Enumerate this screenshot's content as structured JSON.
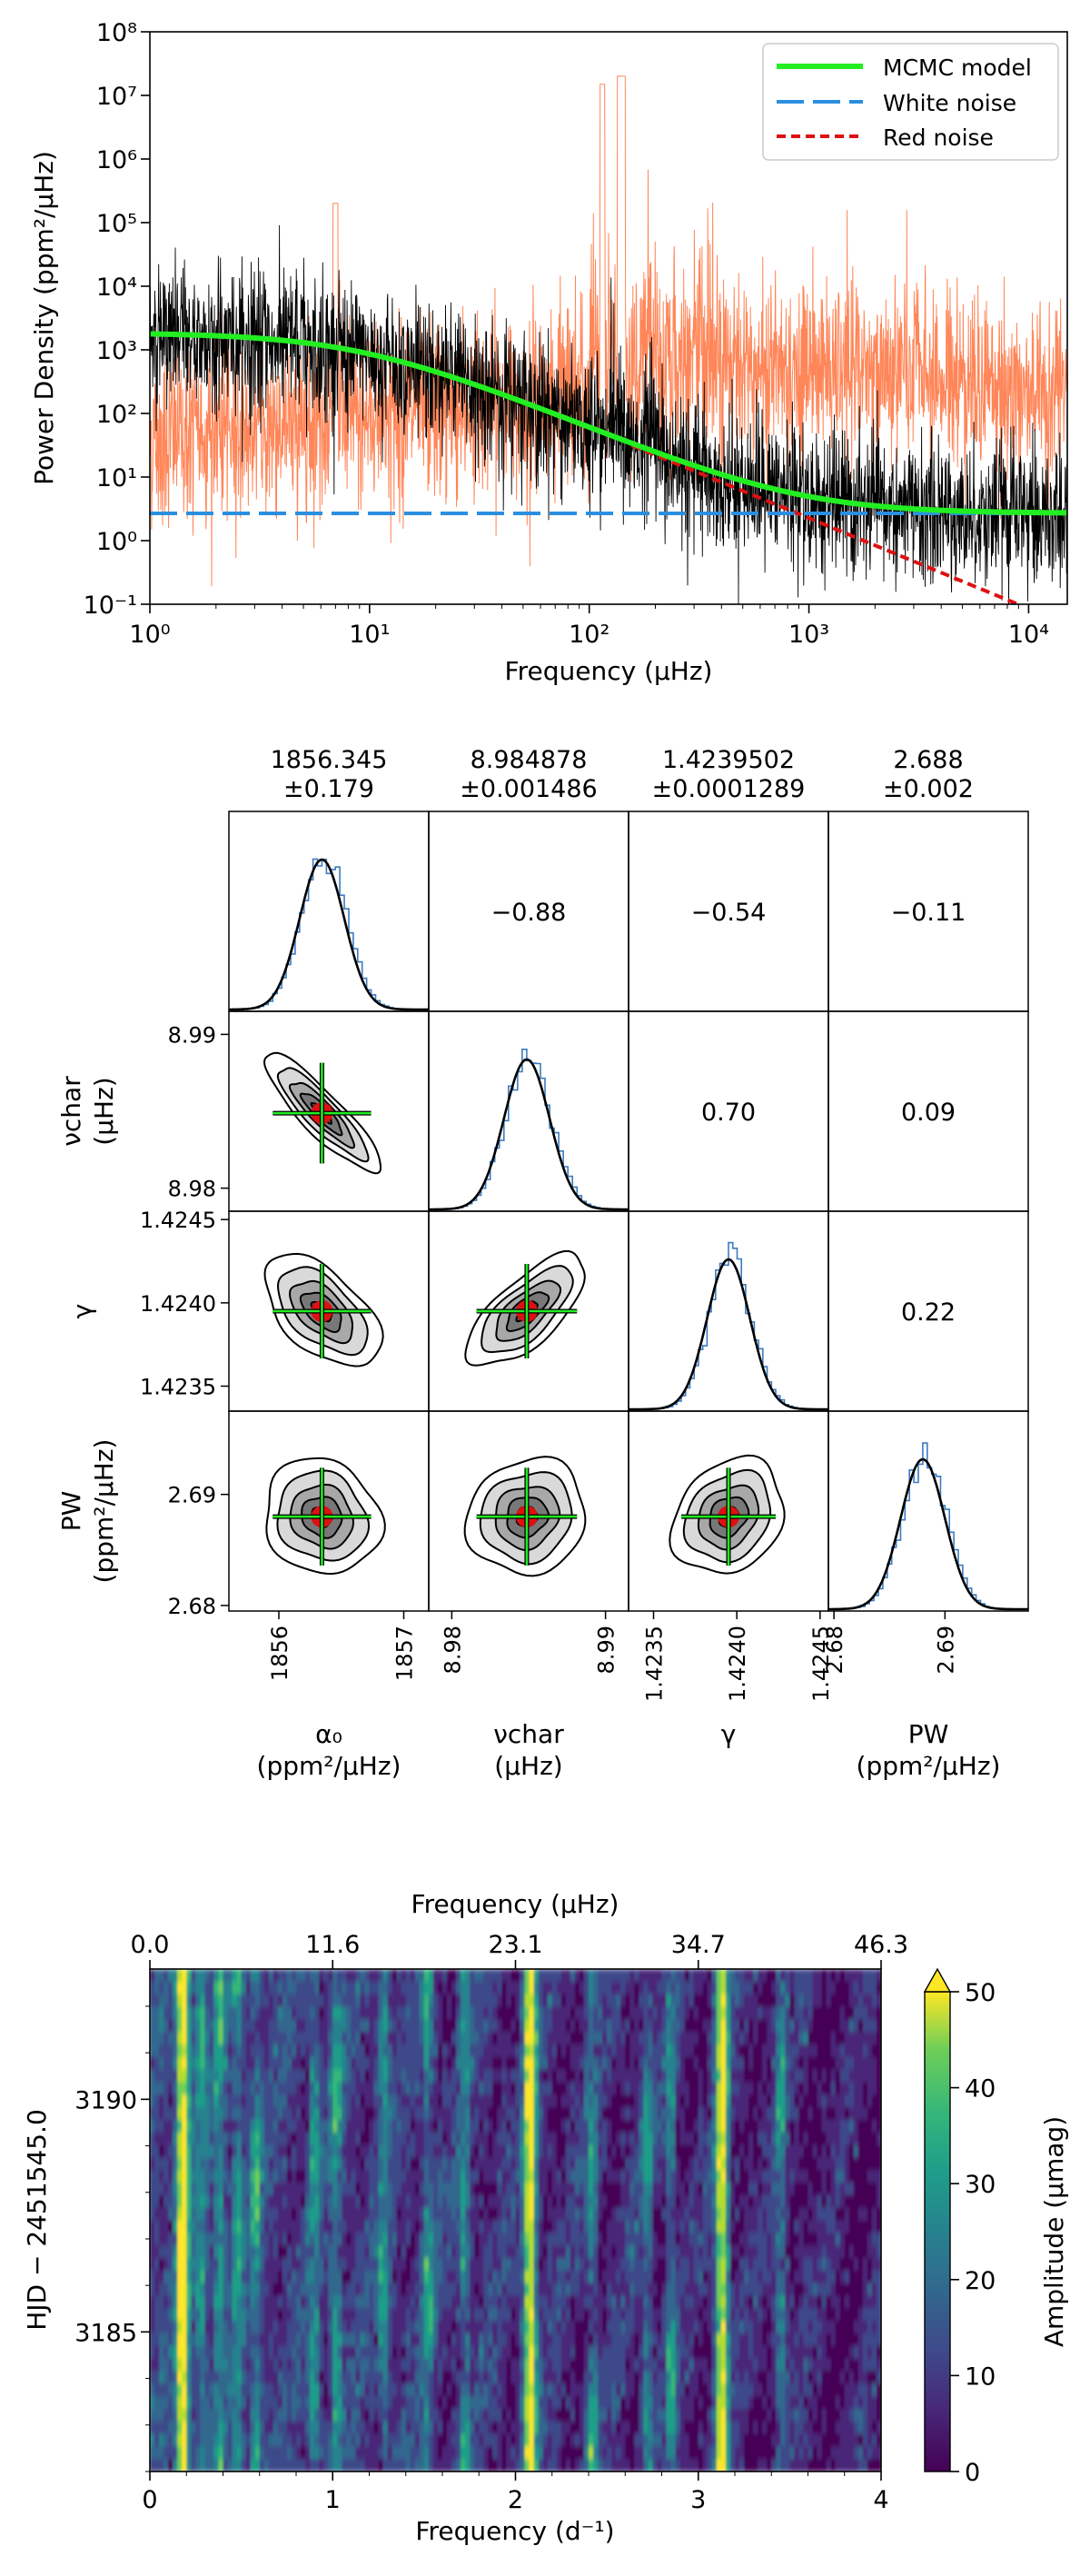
{
  "colors": {
    "mcmc": "#22ee22",
    "white_noise": "#2b8fe0",
    "red_noise": "#dd1111",
    "smoothed": "#ff7f50",
    "spectrum": "#000000"
  },
  "chart_data": [
    {
      "type": "line",
      "xlabel": "Frequency (μHz)",
      "ylabel": "Power Density (ppm²/μHz)",
      "xscale": "log",
      "yscale": "log",
      "xlim": [
        1,
        15000
      ],
      "ylim": [
        0.1,
        100000000
      ],
      "xticks": [
        {
          "value": 1,
          "label": "10⁰"
        },
        {
          "value": 10,
          "label": "10¹"
        },
        {
          "value": 100,
          "label": "10²"
        },
        {
          "value": 1000,
          "label": "10³"
        },
        {
          "value": 10000,
          "label": "10⁴"
        }
      ],
      "yticks": [
        {
          "value": 0.1,
          "label": "10⁻¹"
        },
        {
          "value": 1,
          "label": "10⁰"
        },
        {
          "value": 10,
          "label": "10¹"
        },
        {
          "value": 100,
          "label": "10²"
        },
        {
          "value": 1000,
          "label": "10³"
        },
        {
          "value": 10000,
          "label": "10⁴"
        },
        {
          "value": 100000,
          "label": "10⁵"
        },
        {
          "value": 1000000,
          "label": "10⁶"
        },
        {
          "value": 10000000,
          "label": "10⁷"
        },
        {
          "value": 100000000,
          "label": "10⁸"
        }
      ],
      "legend_position": "top-right",
      "series": [
        {
          "name": "MCMC model",
          "style": "solid",
          "model": {
            "a0": 1856.345,
            "nu_char": 8.984878,
            "gamma": 1.4239502,
            "pw": 2.688
          }
        },
        {
          "name": "White noise",
          "style": "long-dash",
          "value": 2.688
        },
        {
          "name": "Red noise",
          "style": "dashed"
        }
      ]
    },
    {
      "type": "scatter",
      "subtype": "corner",
      "parameters": [
        {
          "label": "α₀",
          "unit": "(ppm²/μHz)",
          "value": "1856.345",
          "error": "±0.179",
          "mean": 1856.345,
          "sigma": 0.179,
          "range": [
            1855.6,
            1857.2
          ],
          "ticks": [
            {
              "v": 1856,
              "l": "1856"
            },
            {
              "v": 1857,
              "l": "1857"
            }
          ]
        },
        {
          "label": "νchar",
          "unit": "(μHz)",
          "value": "8.984878",
          "error": "±0.001486",
          "mean": 8.984878,
          "sigma": 0.001486,
          "range": [
            8.9785,
            8.9915
          ],
          "ticks": [
            {
              "v": 8.98,
              "l": "8.98"
            },
            {
              "v": 8.99,
              "l": "8.99"
            }
          ]
        },
        {
          "label": "γ",
          "unit": "",
          "value": "1.4239502",
          "error": "±0.0001289",
          "mean": 1.4239502,
          "sigma": 0.0001289,
          "range": [
            1.42335,
            1.42455
          ],
          "ticks": [
            {
              "v": 1.4235,
              "l": "1.4235"
            },
            {
              "v": 1.424,
              "l": "1.4240"
            },
            {
              "v": 1.4245,
              "l": "1.4245"
            }
          ]
        },
        {
          "label": "PW",
          "unit": "(ppm²/μHz)",
          "value": "2.688",
          "error": "±0.002",
          "mean": 2.688,
          "sigma": 0.002,
          "range": [
            2.6795,
            2.6975
          ],
          "ticks": [
            {
              "v": 2.68,
              "l": "2.68"
            },
            {
              "v": 2.69,
              "l": "2.69"
            }
          ]
        }
      ],
      "correlations": [
        {
          "row": 0,
          "col": 1,
          "value": "−0.88",
          "r": -0.88
        },
        {
          "row": 0,
          "col": 2,
          "value": "−0.54",
          "r": -0.54
        },
        {
          "row": 0,
          "col": 3,
          "value": "−0.11",
          "r": -0.11
        },
        {
          "row": 1,
          "col": 2,
          "value": "0.70",
          "r": 0.7
        },
        {
          "row": 1,
          "col": 3,
          "value": "0.09",
          "r": 0.09
        },
        {
          "row": 2,
          "col": 3,
          "value": "0.22",
          "r": 0.22
        }
      ]
    },
    {
      "type": "heatmap",
      "xlabel": "Frequency (d⁻¹)",
      "x2label": "Frequency (μHz)",
      "ylabel": "HJD − 2451545.0",
      "xlim": [
        0,
        4
      ],
      "ylim": [
        3182.0,
        3192.8
      ],
      "xticks": [
        "0",
        "1",
        "2",
        "3",
        "4"
      ],
      "x2ticks": [
        "0.0",
        "11.6",
        "23.1",
        "34.7",
        "46.3"
      ],
      "yticks": [
        {
          "value": 3185,
          "label": "3185"
        },
        {
          "value": 3190,
          "label": "3190"
        }
      ],
      "colorbar": {
        "label": "Amplitude (μmag)",
        "range": [
          0,
          50
        ],
        "ticks": [
          "0",
          "10",
          "20",
          "30",
          "40",
          "50"
        ],
        "extend": "max"
      },
      "strong_frequencies": [
        0.18,
        2.08,
        3.13
      ]
    }
  ]
}
